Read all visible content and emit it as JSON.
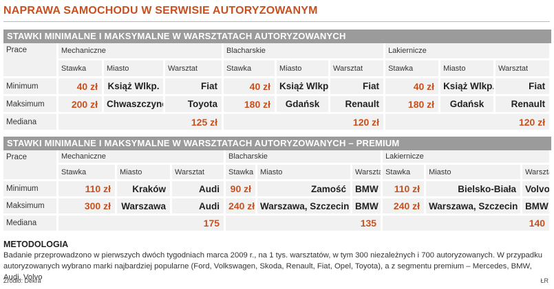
{
  "title": "NAPRAWA SAMOCHODU W SERWISIE AUTORYZOWANYM",
  "section1": {
    "heading": "STAWKI MINIMALNE I MAKSYMALNE W WARSZTATACH AUTORYZOWANYCH",
    "col_prace": "Prace",
    "groups": [
      "Mechaniczne",
      "Blacharskie",
      "Lakiernicze"
    ],
    "subheaders": [
      "Stawka",
      "Miasto",
      "Warsztat"
    ],
    "rows": [
      {
        "label": "Minimum",
        "cells": [
          [
            "40 zł",
            "Książ Wlkp.",
            "Fiat"
          ],
          [
            "40 zł",
            "Książ Wlkp.",
            "Fiat"
          ],
          [
            "40 zł",
            "Książ Wlkp.",
            "Fiat"
          ]
        ]
      },
      {
        "label": "Maksimum",
        "cells": [
          [
            "200 zł",
            "Chwaszczyno",
            "Toyota"
          ],
          [
            "180 zł",
            "Gdańsk",
            "Renault"
          ],
          [
            "180 zł",
            "Gdańsk",
            "Renault"
          ]
        ]
      }
    ],
    "median_label": "Mediana",
    "medians": [
      "125 zł",
      "120 zł",
      "120 zł"
    ]
  },
  "section2": {
    "heading": "STAWKI MINIMALNE I MAKSYMALNE W WARSZTATACH AUTORYZOWANYCH – PREMIUM",
    "col_prace": "Prace",
    "groups": [
      "Mechaniczne",
      "Blacharskie",
      "Lakiernicze"
    ],
    "subheaders": [
      "Stawka",
      "Miasto",
      "Warsztat"
    ],
    "rows": [
      {
        "label": "Minimum",
        "cells": [
          [
            "110 zł",
            "Kraków",
            "Audi"
          ],
          [
            "90 zł",
            "Zamość",
            "BMW"
          ],
          [
            "110 zł",
            "Bielsko-Biała",
            "Volvo"
          ]
        ]
      },
      {
        "label": "Maksimum",
        "cells": [
          [
            "300 zł",
            "Warszawa",
            "Audi"
          ],
          [
            "240 zł",
            "Warszawa, Szczecin",
            "BMW"
          ],
          [
            "240 zł",
            "Warszawa, Szczecin",
            "BMW"
          ]
        ]
      }
    ],
    "median_label": "Mediana",
    "medians": [
      "175",
      "135",
      "140"
    ]
  },
  "methodology": {
    "title": "METODOLOGIA",
    "text": "Badanie przeprowadzono w pierwszych dwóch tygodniach marca 2009 r., na 1 tys. warsztatów, w tym 300 niezależnych i 700 autoryzowanych. W przypadku autoryzowanych wybrano marki najbardziej popularne (Ford, Volkswagen, Skoda, Renault, Fiat, Opel, Toyota), a z segmentu premium – Mercedes, BMW, Audi, Volvo"
  },
  "source": "Źródło: Dekra",
  "credit": "ŁR",
  "colors": {
    "accent": "#c8501e",
    "header_bg": "#9b9b9b",
    "cell_bg": "#f1f1f1"
  }
}
